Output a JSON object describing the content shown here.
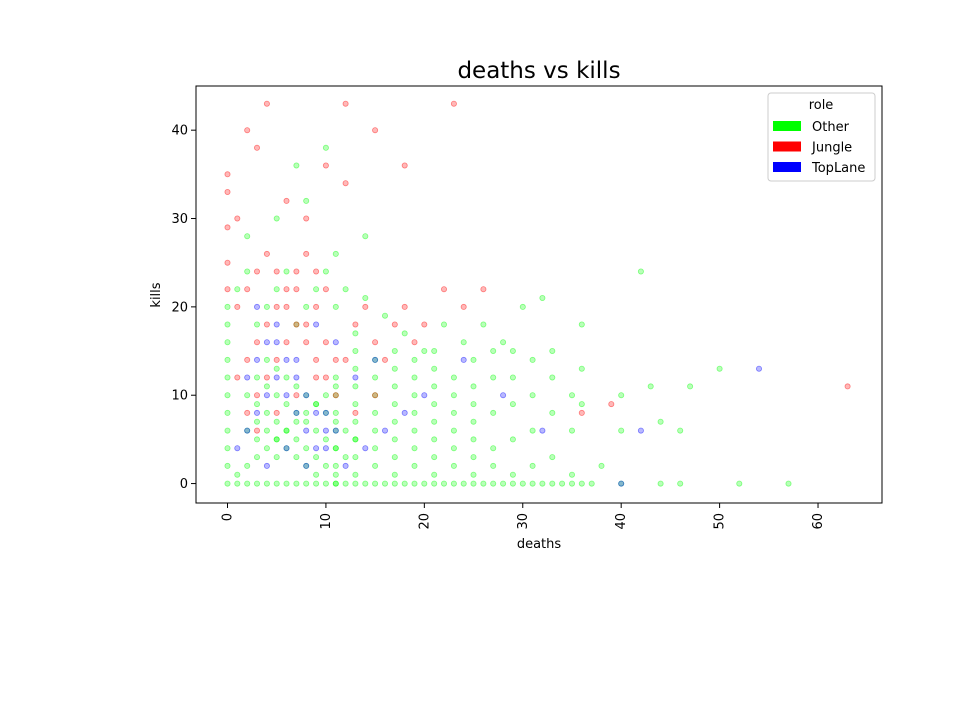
{
  "chart_data": {
    "type": "scatter",
    "title": "deaths vs kills",
    "xlabel": "deaths",
    "ylabel": "kills",
    "xlim": [
      -3.2,
      66.5
    ],
    "ylim": [
      -2.2,
      45
    ],
    "xticks": [
      0,
      10,
      20,
      30,
      40,
      50,
      60
    ],
    "yticks": [
      0,
      10,
      20,
      30,
      40
    ],
    "xtick_rotation": 90,
    "grid": false,
    "legend": {
      "title": "role",
      "placement": "top-right",
      "entries": [
        {
          "name": "Other",
          "color": "#00ff00"
        },
        {
          "name": "Jungle",
          "color": "#ff0000"
        },
        {
          "name": "TopLane",
          "color": "#0000ff"
        }
      ]
    },
    "series": [
      {
        "name": "Other",
        "color": "#00ff00",
        "points": [
          [
            0,
            0
          ],
          [
            1,
            0
          ],
          [
            2,
            0
          ],
          [
            3,
            0
          ],
          [
            4,
            0
          ],
          [
            5,
            0
          ],
          [
            6,
            0
          ],
          [
            7,
            0
          ],
          [
            8,
            0
          ],
          [
            9,
            0
          ],
          [
            10,
            0
          ],
          [
            11,
            0
          ],
          [
            12,
            0
          ],
          [
            13,
            0
          ],
          [
            14,
            0
          ],
          [
            15,
            0
          ],
          [
            16,
            0
          ],
          [
            17,
            0
          ],
          [
            18,
            0
          ],
          [
            19,
            0
          ],
          [
            20,
            0
          ],
          [
            21,
            0
          ],
          [
            22,
            0
          ],
          [
            23,
            0
          ],
          [
            24,
            0
          ],
          [
            25,
            0
          ],
          [
            26,
            0
          ],
          [
            27,
            0
          ],
          [
            28,
            0
          ],
          [
            29,
            0
          ],
          [
            30,
            0
          ],
          [
            31,
            0
          ],
          [
            32,
            0
          ],
          [
            33,
            0
          ],
          [
            34,
            0
          ],
          [
            35,
            0
          ],
          [
            36,
            0
          ],
          [
            37,
            0
          ],
          [
            40,
            0
          ],
          [
            44,
            0
          ],
          [
            46,
            0
          ],
          [
            52,
            0
          ],
          [
            57,
            0
          ],
          [
            0,
            2
          ],
          [
            0,
            4
          ],
          [
            0,
            6
          ],
          [
            0,
            8
          ],
          [
            0,
            10
          ],
          [
            0,
            12
          ],
          [
            0,
            14
          ],
          [
            0,
            16
          ],
          [
            0,
            18
          ],
          [
            0,
            20
          ],
          [
            1,
            1
          ],
          [
            2,
            2
          ],
          [
            3,
            3
          ],
          [
            4,
            4
          ],
          [
            5,
            5
          ],
          [
            6,
            6
          ],
          [
            7,
            7
          ],
          [
            8,
            8
          ],
          [
            9,
            9
          ],
          [
            10,
            10
          ],
          [
            11,
            11
          ],
          [
            2,
            10
          ],
          [
            3,
            9
          ],
          [
            4,
            8
          ],
          [
            5,
            7
          ],
          [
            6,
            6
          ],
          [
            7,
            5
          ],
          [
            8,
            4
          ],
          [
            9,
            3
          ],
          [
            10,
            2
          ],
          [
            11,
            1
          ],
          [
            3,
            12
          ],
          [
            4,
            11
          ],
          [
            5,
            10
          ],
          [
            6,
            9
          ],
          [
            7,
            8
          ],
          [
            8,
            7
          ],
          [
            9,
            6
          ],
          [
            10,
            5
          ],
          [
            11,
            4
          ],
          [
            12,
            3
          ],
          [
            4,
            14
          ],
          [
            5,
            13
          ],
          [
            6,
            12
          ],
          [
            7,
            11
          ],
          [
            8,
            10
          ],
          [
            9,
            9
          ],
          [
            10,
            8
          ],
          [
            11,
            7
          ],
          [
            12,
            6
          ],
          [
            13,
            5
          ],
          [
            2,
            6
          ],
          [
            3,
            7
          ],
          [
            4,
            6
          ],
          [
            5,
            5
          ],
          [
            6,
            4
          ],
          [
            7,
            3
          ],
          [
            8,
            2
          ],
          [
            9,
            1
          ],
          [
            3,
            5
          ],
          [
            5,
            3
          ],
          [
            11,
            0
          ],
          [
            11,
            2
          ],
          [
            11,
            4
          ],
          [
            11,
            6
          ],
          [
            11,
            8
          ],
          [
            11,
            10
          ],
          [
            11,
            12
          ],
          [
            13,
            1
          ],
          [
            13,
            3
          ],
          [
            13,
            5
          ],
          [
            13,
            7
          ],
          [
            13,
            9
          ],
          [
            13,
            11
          ],
          [
            13,
            13
          ],
          [
            13,
            15
          ],
          [
            13,
            17
          ],
          [
            15,
            2
          ],
          [
            15,
            4
          ],
          [
            15,
            6
          ],
          [
            15,
            8
          ],
          [
            15,
            10
          ],
          [
            15,
            12
          ],
          [
            15,
            14
          ],
          [
            17,
            1
          ],
          [
            17,
            3
          ],
          [
            17,
            5
          ],
          [
            17,
            7
          ],
          [
            17,
            9
          ],
          [
            17,
            11
          ],
          [
            17,
            13
          ],
          [
            17,
            15
          ],
          [
            19,
            2
          ],
          [
            19,
            4
          ],
          [
            19,
            6
          ],
          [
            19,
            8
          ],
          [
            19,
            10
          ],
          [
            19,
            12
          ],
          [
            19,
            14
          ],
          [
            21,
            1
          ],
          [
            21,
            3
          ],
          [
            21,
            5
          ],
          [
            21,
            7
          ],
          [
            21,
            9
          ],
          [
            21,
            11
          ],
          [
            21,
            13
          ],
          [
            21,
            15
          ],
          [
            23,
            2
          ],
          [
            23,
            4
          ],
          [
            23,
            6
          ],
          [
            23,
            8
          ],
          [
            23,
            10
          ],
          [
            23,
            12
          ],
          [
            25,
            1
          ],
          [
            25,
            3
          ],
          [
            25,
            5
          ],
          [
            25,
            7
          ],
          [
            25,
            9
          ],
          [
            25,
            11
          ],
          [
            25,
            14
          ],
          [
            27,
            2
          ],
          [
            27,
            4
          ],
          [
            27,
            8
          ],
          [
            27,
            12
          ],
          [
            27,
            15
          ],
          [
            29,
            1
          ],
          [
            29,
            5
          ],
          [
            29,
            9
          ],
          [
            29,
            12
          ],
          [
            29,
            15
          ],
          [
            31,
            2
          ],
          [
            31,
            6
          ],
          [
            31,
            10
          ],
          [
            31,
            14
          ],
          [
            32,
            21
          ],
          [
            33,
            3
          ],
          [
            33,
            8
          ],
          [
            33,
            12
          ],
          [
            33,
            15
          ],
          [
            35,
            1
          ],
          [
            35,
            6
          ],
          [
            35,
            10
          ],
          [
            36,
            9
          ],
          [
            36,
            13
          ],
          [
            36,
            18
          ],
          [
            38,
            2
          ],
          [
            40,
            6
          ],
          [
            40,
            10
          ],
          [
            42,
            24
          ],
          [
            43,
            11
          ],
          [
            44,
            7
          ],
          [
            46,
            6
          ],
          [
            47,
            11
          ],
          [
            50,
            13
          ],
          [
            14,
            21
          ],
          [
            16,
            19
          ],
          [
            18,
            17
          ],
          [
            20,
            15
          ],
          [
            22,
            18
          ],
          [
            24,
            16
          ],
          [
            26,
            18
          ],
          [
            28,
            16
          ],
          [
            30,
            20
          ],
          [
            1,
            22
          ],
          [
            2,
            24
          ],
          [
            3,
            18
          ],
          [
            4,
            20
          ],
          [
            5,
            22
          ],
          [
            6,
            24
          ],
          [
            7,
            18
          ],
          [
            8,
            20
          ],
          [
            9,
            22
          ],
          [
            10,
            24
          ],
          [
            11,
            20
          ],
          [
            12,
            22
          ],
          [
            2,
            28
          ],
          [
            5,
            30
          ],
          [
            8,
            32
          ],
          [
            11,
            26
          ],
          [
            14,
            28
          ],
          [
            7,
            36
          ],
          [
            10,
            38
          ]
        ]
      },
      {
        "name": "Jungle",
        "color": "#ff0000",
        "points": [
          [
            0,
            35
          ],
          [
            0,
            33
          ],
          [
            0,
            29
          ],
          [
            0,
            25
          ],
          [
            0,
            22
          ],
          [
            1,
            30
          ],
          [
            2,
            40
          ],
          [
            3,
            38
          ],
          [
            4,
            43
          ],
          [
            6,
            32
          ],
          [
            8,
            30
          ],
          [
            10,
            36
          ],
          [
            12,
            34
          ],
          [
            15,
            40
          ],
          [
            18,
            36
          ],
          [
            23,
            43
          ],
          [
            12,
            43
          ],
          [
            1,
            12
          ],
          [
            2,
            14
          ],
          [
            3,
            16
          ],
          [
            4,
            18
          ],
          [
            5,
            20
          ],
          [
            6,
            22
          ],
          [
            7,
            24
          ],
          [
            8,
            26
          ],
          [
            9,
            24
          ],
          [
            10,
            22
          ],
          [
            2,
            8
          ],
          [
            3,
            10
          ],
          [
            4,
            12
          ],
          [
            5,
            14
          ],
          [
            6,
            16
          ],
          [
            7,
            18
          ],
          [
            8,
            16
          ],
          [
            9,
            14
          ],
          [
            10,
            12
          ],
          [
            11,
            10
          ],
          [
            1,
            20
          ],
          [
            2,
            22
          ],
          [
            3,
            24
          ],
          [
            4,
            26
          ],
          [
            5,
            24
          ],
          [
            6,
            20
          ],
          [
            7,
            22
          ],
          [
            8,
            18
          ],
          [
            9,
            20
          ],
          [
            10,
            16
          ],
          [
            12,
            14
          ],
          [
            13,
            18
          ],
          [
            14,
            20
          ],
          [
            15,
            16
          ],
          [
            16,
            14
          ],
          [
            17,
            18
          ],
          [
            18,
            20
          ],
          [
            19,
            16
          ],
          [
            20,
            18
          ],
          [
            22,
            22
          ],
          [
            24,
            20
          ],
          [
            26,
            22
          ],
          [
            3,
            6
          ],
          [
            5,
            8
          ],
          [
            7,
            10
          ],
          [
            9,
            12
          ],
          [
            11,
            14
          ],
          [
            13,
            8
          ],
          [
            15,
            10
          ],
          [
            36,
            8
          ],
          [
            39,
            9
          ],
          [
            63,
            11
          ]
        ]
      },
      {
        "name": "TopLane",
        "color": "#0000ff",
        "points": [
          [
            1,
            4
          ],
          [
            2,
            6
          ],
          [
            3,
            8
          ],
          [
            4,
            10
          ],
          [
            5,
            12
          ],
          [
            6,
            14
          ],
          [
            7,
            12
          ],
          [
            8,
            10
          ],
          [
            9,
            8
          ],
          [
            10,
            6
          ],
          [
            2,
            12
          ],
          [
            3,
            14
          ],
          [
            4,
            16
          ],
          [
            5,
            18
          ],
          [
            6,
            10
          ],
          [
            7,
            8
          ],
          [
            8,
            6
          ],
          [
            9,
            4
          ],
          [
            10,
            8
          ],
          [
            11,
            6
          ],
          [
            4,
            2
          ],
          [
            6,
            4
          ],
          [
            8,
            2
          ],
          [
            10,
            4
          ],
          [
            12,
            2
          ],
          [
            14,
            4
          ],
          [
            16,
            6
          ],
          [
            18,
            8
          ],
          [
            20,
            10
          ],
          [
            3,
            20
          ],
          [
            5,
            16
          ],
          [
            7,
            14
          ],
          [
            9,
            18
          ],
          [
            11,
            16
          ],
          [
            13,
            12
          ],
          [
            15,
            14
          ],
          [
            24,
            14
          ],
          [
            28,
            10
          ],
          [
            32,
            6
          ],
          [
            40,
            0
          ],
          [
            42,
            6
          ],
          [
            54,
            13
          ]
        ]
      }
    ]
  }
}
